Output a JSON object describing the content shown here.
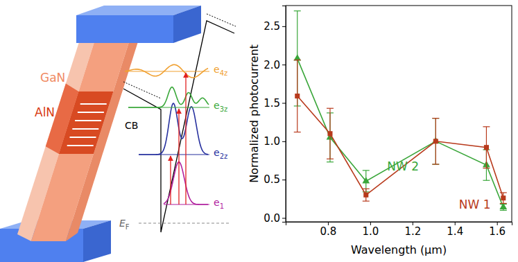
{
  "chart_data": {
    "type": "line",
    "x_label": "Wavelength (µm)",
    "y_label": "Normalized photocurrent",
    "x": [
      0.655,
      0.81,
      0.98,
      1.31,
      1.55,
      1.63
    ],
    "series": [
      {
        "name": "NW 1",
        "color": "#b83a1c",
        "marker": "square",
        "line_style": "solid",
        "values": [
          1.59,
          1.1,
          0.3,
          1.0,
          0.92,
          0.26
        ],
        "errors": [
          0.47,
          0.33,
          0.08,
          0.3,
          0.27,
          0.07
        ]
      },
      {
        "name": "NW 2",
        "color": "#3aa63a",
        "marker": "triangle",
        "line_style": "solid",
        "values": [
          2.08,
          1.05,
          0.48,
          1.0,
          0.69,
          0.14
        ],
        "errors": [
          0.62,
          0.32,
          0.14,
          0.3,
          0.2,
          0.04
        ]
      }
    ],
    "xlim": [
      0.6,
      1.67
    ],
    "ylim": [
      -0.05,
      2.77
    ],
    "xticks": [
      0.8,
      {
        "value": 1,
        "label": "1.0"
      },
      1.2,
      1.4,
      1.6
    ],
    "yticks": [
      {
        "value": 0,
        "label": "0.0"
      },
      0.5,
      {
        "value": 1,
        "label": "1.0"
      },
      1.5,
      {
        "value": 2,
        "label": "2.0"
      },
      2.5
    ],
    "grid": false
  },
  "diagram": {
    "gan": "GaN",
    "aln": "AlN",
    "cb": "CB",
    "levels": [
      {
        "base": "e",
        "sub": "1",
        "color": "#b0209e"
      },
      {
        "base": "e",
        "sub": "2z",
        "color": "#26309e"
      },
      {
        "base": "e",
        "sub": "3z",
        "color": "#3aa83a"
      },
      {
        "base": "e",
        "sub": "4z",
        "color": "#f0a030"
      }
    ],
    "fermi": {
      "base": "E",
      "sub": "F"
    }
  }
}
